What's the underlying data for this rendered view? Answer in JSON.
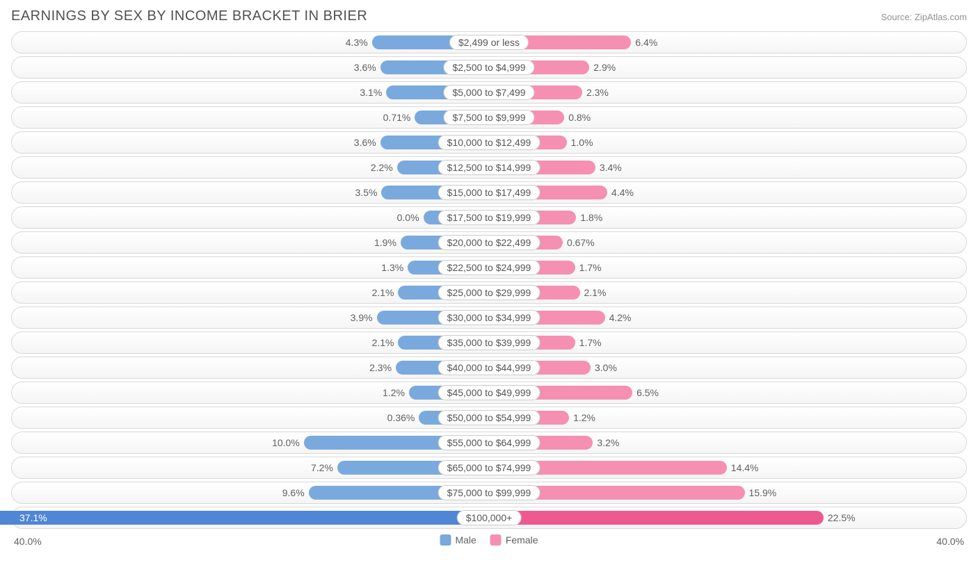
{
  "title": "EARNINGS BY SEX BY INCOME BRACKET IN BRIER",
  "source": "Source: ZipAtlas.com",
  "axis_max_pct": 40.0,
  "axis_label_left": "40.0%",
  "axis_label_right": "40.0%",
  "colors": {
    "male_bar": "#7aa9de",
    "male_bar_dark": "#4f86d6",
    "female_bar": "#f590b2",
    "female_bar_dark": "#ee5a8f",
    "track_border": "#d8d8d8",
    "text": "#606060"
  },
  "center_label_half_pct": 5.5,
  "legend": {
    "male": "Male",
    "female": "Female"
  },
  "rows": [
    {
      "label": "$2,499 or less",
      "male": 4.3,
      "male_txt": "4.3%",
      "female": 6.4,
      "female_txt": "6.4%"
    },
    {
      "label": "$2,500 to $4,999",
      "male": 3.6,
      "male_txt": "3.6%",
      "female": 2.9,
      "female_txt": "2.9%"
    },
    {
      "label": "$5,000 to $7,499",
      "male": 3.1,
      "male_txt": "3.1%",
      "female": 2.3,
      "female_txt": "2.3%"
    },
    {
      "label": "$7,500 to $9,999",
      "male": 0.71,
      "male_txt": "0.71%",
      "female": 0.8,
      "female_txt": "0.8%"
    },
    {
      "label": "$10,000 to $12,499",
      "male": 3.6,
      "male_txt": "3.6%",
      "female": 1.0,
      "female_txt": "1.0%"
    },
    {
      "label": "$12,500 to $14,999",
      "male": 2.2,
      "male_txt": "2.2%",
      "female": 3.4,
      "female_txt": "3.4%"
    },
    {
      "label": "$15,000 to $17,499",
      "male": 3.5,
      "male_txt": "3.5%",
      "female": 4.4,
      "female_txt": "4.4%"
    },
    {
      "label": "$17,500 to $19,999",
      "male": 0.0,
      "male_txt": "0.0%",
      "female": 1.8,
      "female_txt": "1.8%"
    },
    {
      "label": "$20,000 to $22,499",
      "male": 1.9,
      "male_txt": "1.9%",
      "female": 0.67,
      "female_txt": "0.67%"
    },
    {
      "label": "$22,500 to $24,999",
      "male": 1.3,
      "male_txt": "1.3%",
      "female": 1.7,
      "female_txt": "1.7%"
    },
    {
      "label": "$25,000 to $29,999",
      "male": 2.1,
      "male_txt": "2.1%",
      "female": 2.1,
      "female_txt": "2.1%"
    },
    {
      "label": "$30,000 to $34,999",
      "male": 3.9,
      "male_txt": "3.9%",
      "female": 4.2,
      "female_txt": "4.2%"
    },
    {
      "label": "$35,000 to $39,999",
      "male": 2.1,
      "male_txt": "2.1%",
      "female": 1.7,
      "female_txt": "1.7%"
    },
    {
      "label": "$40,000 to $44,999",
      "male": 2.3,
      "male_txt": "2.3%",
      "female": 3.0,
      "female_txt": "3.0%"
    },
    {
      "label": "$45,000 to $49,999",
      "male": 1.2,
      "male_txt": "1.2%",
      "female": 6.5,
      "female_txt": "6.5%"
    },
    {
      "label": "$50,000 to $54,999",
      "male": 0.36,
      "male_txt": "0.36%",
      "female": 1.2,
      "female_txt": "1.2%"
    },
    {
      "label": "$55,000 to $64,999",
      "male": 10.0,
      "male_txt": "10.0%",
      "female": 3.2,
      "female_txt": "3.2%"
    },
    {
      "label": "$65,000 to $74,999",
      "male": 7.2,
      "male_txt": "7.2%",
      "female": 14.4,
      "female_txt": "14.4%"
    },
    {
      "label": "$75,000 to $99,999",
      "male": 9.6,
      "male_txt": "9.6%",
      "female": 15.9,
      "female_txt": "15.9%"
    },
    {
      "label": "$100,000+",
      "male": 37.1,
      "male_txt": "37.1%",
      "female": 22.5,
      "female_txt": "22.5%"
    }
  ]
}
